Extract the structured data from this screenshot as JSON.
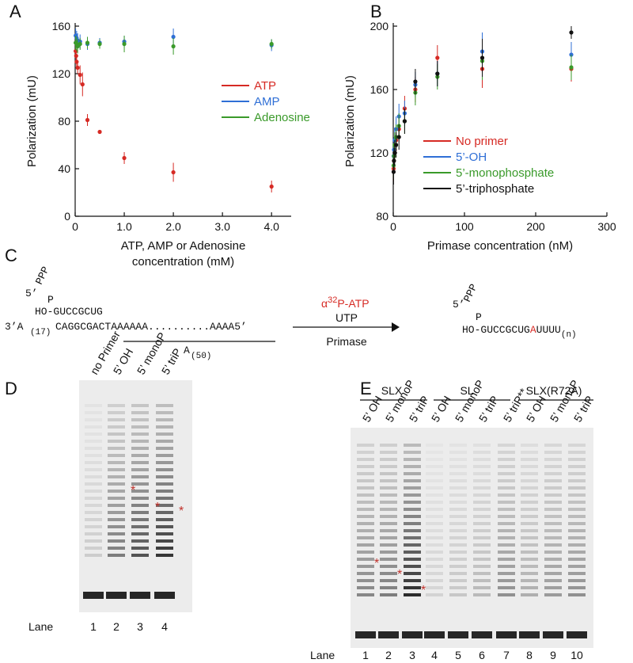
{
  "chart_data": [
    {
      "type": "scatter",
      "panel": "A",
      "ylabel": "Polarization (mU)",
      "xlabel": [
        "ATP, AMP or Adenosine",
        "concentration (mM)"
      ],
      "xlim": [
        0,
        4.4
      ],
      "xticks": [
        0,
        {
          "value": 1,
          "label": "1.0"
        },
        {
          "value": 2,
          "label": "2.0"
        },
        {
          "value": 3,
          "label": "3.0"
        },
        {
          "value": 4,
          "label": "4.0"
        }
      ],
      "ylim": [
        0,
        160
      ],
      "yticks": [
        0,
        40,
        80,
        120,
        160
      ],
      "legend": "center right",
      "series": [
        {
          "name": "ATP",
          "color": "#d62a24",
          "x": [
            0.01,
            0.02,
            0.03,
            0.05,
            0.1,
            0.15,
            0.25,
            0.5,
            1,
            2,
            4
          ],
          "values": [
            139,
            135,
            130,
            125,
            119,
            111,
            81,
            71,
            49,
            37,
            25
          ],
          "errors": [
            5,
            5,
            5,
            5,
            8,
            10,
            5,
            0,
            5,
            8,
            5
          ]
        },
        {
          "name": "AMP",
          "color": "#2f6fd6",
          "x": [
            0.01,
            0.03,
            0.05,
            0.1,
            0.25,
            0.5,
            1,
            2,
            4
          ],
          "values": [
            152,
            150,
            148,
            147,
            145,
            146,
            147,
            151,
            144
          ],
          "errors": [
            6,
            6,
            6,
            6,
            5,
            4,
            5,
            7,
            5
          ]
        },
        {
          "name": "Adenosine",
          "color": "#3a9a2a",
          "x": [
            0.01,
            0.03,
            0.05,
            0.1,
            0.25,
            0.5,
            1,
            2,
            4
          ],
          "values": [
            146,
            145,
            143,
            145,
            146,
            145,
            145,
            143,
            145
          ],
          "errors": [
            6,
            6,
            6,
            5,
            5,
            4,
            7,
            7,
            4
          ]
        }
      ]
    },
    {
      "type": "scatter",
      "panel": "B",
      "ylabel": "Polarization (mU)",
      "xlabel": [
        "Primase concentration (nM)"
      ],
      "xlim": [
        0,
        300
      ],
      "xticks": [
        0,
        100,
        200,
        300
      ],
      "ylim": [
        80,
        200
      ],
      "yticks": [
        80,
        120,
        160,
        200
      ],
      "legend": "lower right",
      "series": [
        {
          "name": "No primer",
          "color": "#d62a24",
          "x": [
            0.5,
            1,
            2,
            4,
            8,
            16,
            31,
            62,
            125,
            250
          ],
          "values": [
            110,
            115,
            122,
            128,
            135,
            148,
            160,
            180,
            173,
            173
          ],
          "errors": [
            8,
            8,
            8,
            8,
            8,
            8,
            8,
            8,
            12,
            8
          ]
        },
        {
          "name": "5’-OH",
          "color": "#2f6fd6",
          "x": [
            0.5,
            1,
            2,
            4,
            8,
            16,
            31,
            62,
            125,
            250
          ],
          "values": [
            118,
            122,
            128,
            135,
            143,
            145,
            163,
            170,
            184,
            182
          ],
          "errors": [
            8,
            8,
            8,
            8,
            8,
            8,
            8,
            8,
            12,
            8
          ]
        },
        {
          "name": "5’-monophosphate",
          "color": "#3a9a2a",
          "x": [
            0.5,
            1,
            2,
            4,
            8,
            16,
            31,
            62,
            125,
            250
          ],
          "values": [
            112,
            118,
            125,
            130,
            137,
            140,
            158,
            168,
            178,
            174
          ],
          "errors": [
            8,
            8,
            8,
            8,
            8,
            8,
            8,
            8,
            12,
            8
          ]
        },
        {
          "name": "5’-triphosphate",
          "color": "#111111",
          "x": [
            0.5,
            1,
            2,
            4,
            8,
            16,
            31,
            62,
            125,
            250
          ],
          "values": [
            108,
            115,
            120,
            125,
            130,
            140,
            165,
            170,
            180,
            196
          ],
          "errors": [
            8,
            8,
            8,
            8,
            8,
            8,
            8,
            8,
            12,
            4
          ]
        }
      ]
    }
  ],
  "panel_labels": [
    "C",
    "D",
    "E"
  ],
  "scheme": {
    "five_prime": "5’",
    "ppp": "PPP",
    "p": "P",
    "primer": "HO-GUCCGCUG",
    "three_prime": "3’A",
    "a17": "(17)",
    "template": "CAGGCGACTAAAAAA..........AAAA5’",
    "a50": "A",
    "a50_sub": "(50)",
    "reagent_alpha": "α",
    "reagent_32": "32",
    "reagent_atp": "P-ATP",
    "utp": "UTP",
    "primase": "Primase",
    "product_five_prime": "5’",
    "product_ppp": "PPP",
    "product_p": "P",
    "product_primer": "HO-GUCCGCUG",
    "product_a": "A",
    "product_tail": "UUUU",
    "product_n": "(n)"
  },
  "gel_d": {
    "lanes": [
      "no Primer",
      "5’ OH",
      "5’ monoP",
      "5’ triP"
    ],
    "lane_word": "Lane",
    "lane_numbers": [
      "1",
      "2",
      "3",
      "4"
    ],
    "asterisk": "*"
  },
  "gel_e": {
    "groups": [
      "SLX",
      "SL",
      "SLX(R72A)"
    ],
    "lanes": [
      "5’ OH",
      "5’ monoP",
      "5’ triP",
      "5’ OH",
      "5’ monoP",
      "5’ triP",
      "5’ triP**",
      "5’ OH",
      "5’ monoP",
      "5’ triP"
    ],
    "lane_word": "Lane",
    "lane_numbers": [
      "1",
      "2",
      "3",
      "4",
      "5",
      "6",
      "7",
      "8",
      "9",
      "10"
    ],
    "asterisk": "*"
  }
}
